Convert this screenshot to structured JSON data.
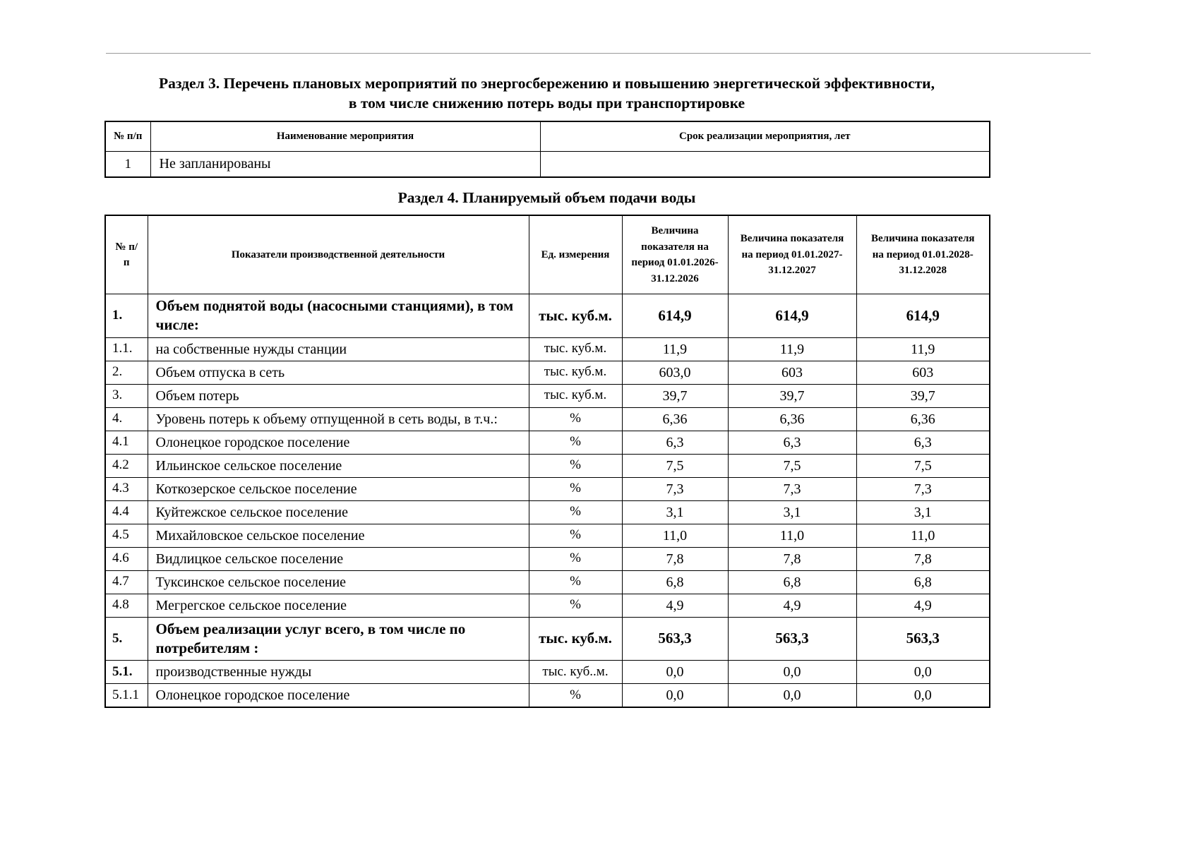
{
  "page": {
    "section3_title": "Раздел 3.  Перечень плановых мероприятий по энергосбережению и повышению энергетической эффективности,",
    "section3_subtitle": "в том числе снижению потерь воды при транспортировке",
    "section4_title": "Раздел 4.  Планируемый объем подачи воды"
  },
  "table1": {
    "headers": [
      "№ п/п",
      "Наименование мероприятия",
      "Срок реализации мероприятия, лет"
    ],
    "rows": [
      {
        "num": "1",
        "name": "Не запланированы",
        "term": ""
      }
    ]
  },
  "table2": {
    "headers": [
      "№ п/п",
      "Показатели производственной деятельности",
      "Ед. измерения",
      "Величина показателя на период 01.01.2026- 31.12.2026",
      "Величина показателя на период 01.01.2027- 31.12.2027",
      "Величина показателя на период 01.01.2028- 31.12.2028"
    ],
    "rows": [
      {
        "num": "1.",
        "label": "Объем поднятой воды (насосными станциями), в том числе:",
        "unit": "тыс. куб.м.",
        "v1": "614,9",
        "v2": "614,9",
        "v3": "614,9",
        "bold": true
      },
      {
        "num": "1.1.",
        "label": "на собственные нужды станции",
        "unit": "тыс. куб.м.",
        "v1": "11,9",
        "v2": "11,9",
        "v3": "11,9"
      },
      {
        "num": "2.",
        "label": "Объем отпуска в сеть",
        "unit": "тыс. куб.м.",
        "v1": "603,0",
        "v2": "603",
        "v3": "603"
      },
      {
        "num": "3.",
        "label": "Объем потерь",
        "unit": "тыс. куб.м.",
        "v1": "39,7",
        "v2": "39,7",
        "v3": "39,7"
      },
      {
        "num": "4.",
        "label": "Уровень потерь к объему отпущенной в сеть воды, в т.ч.:",
        "unit": "%",
        "v1": "6,36",
        "v2": "6,36",
        "v3": "6,36"
      },
      {
        "num": "4.1",
        "label": "Олонецкое городское поселение",
        "unit": "%",
        "v1": "6,3",
        "v2": "6,3",
        "v3": "6,3"
      },
      {
        "num": "4.2",
        "label": "Ильинское сельское поселение",
        "unit": "%",
        "v1": "7,5",
        "v2": "7,5",
        "v3": "7,5"
      },
      {
        "num": "4.3",
        "label": "Коткозерское сельское поселение",
        "unit": "%",
        "v1": "7,3",
        "v2": "7,3",
        "v3": "7,3"
      },
      {
        "num": "4.4",
        "label": "Куйтежское сельское поселение",
        "unit": "%",
        "v1": "3,1",
        "v2": "3,1",
        "v3": "3,1"
      },
      {
        "num": "4.5",
        "label": "Михайловское сельское поселение",
        "unit": "%",
        "v1": "11,0",
        "v2": "11,0",
        "v3": "11,0"
      },
      {
        "num": "4.6",
        "label": "Видлицкое сельское поселение",
        "unit": "%",
        "v1": "7,8",
        "v2": "7,8",
        "v3": "7,8"
      },
      {
        "num": "4.7",
        "label": "Туксинское сельское поселение",
        "unit": "%",
        "v1": "6,8",
        "v2": "6,8",
        "v3": "6,8"
      },
      {
        "num": "4.8",
        "label": "Мегрегское сельское поселение",
        "unit": "%",
        "v1": "4,9",
        "v2": "4,9",
        "v3": "4,9"
      },
      {
        "num": "5.",
        "label": "Объем реализации услуг всего, в том числе по потребителям :",
        "unit": "тыс. куб.м.",
        "v1": "563,3",
        "v2": "563,3",
        "v3": "563,3",
        "bold": true
      },
      {
        "num": "5.1.",
        "label": "производственные нужды",
        "unit": "тыс. куб..м.",
        "v1": "0,0",
        "v2": "0,0",
        "v3": "0,0",
        "bold_num": true
      },
      {
        "num": "5.1.1",
        "label": "Олонецкое городское поселение",
        "unit": "%",
        "v1": "0,0",
        "v2": "0,0",
        "v3": "0,0"
      }
    ]
  }
}
